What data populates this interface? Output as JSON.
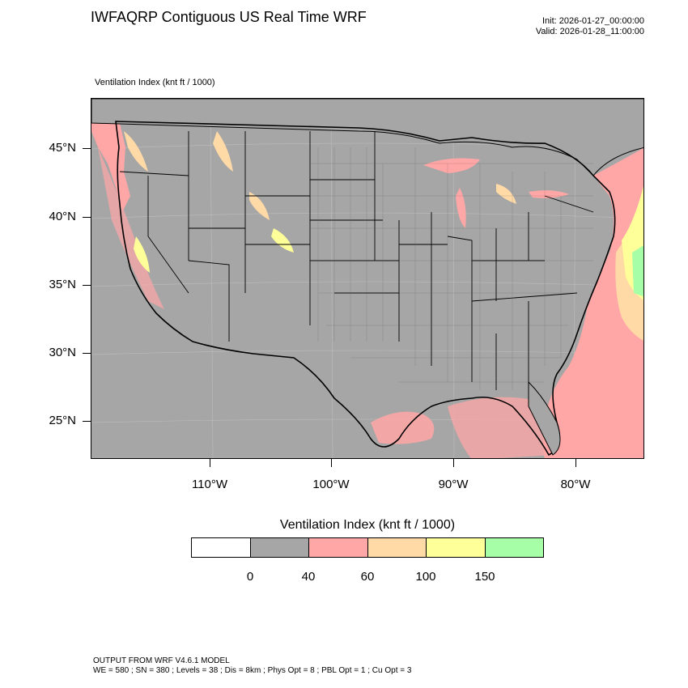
{
  "title": "IWFAQRP Contiguous US Real Time WRF",
  "run": {
    "init": "Init: 2026-01-27_00:00:00",
    "valid": "Valid: 2026-01-28_11:00:00"
  },
  "variable_label": "Ventilation Index   (knt ft / 1000)",
  "map": {
    "lat_labels": [
      "45°N",
      "40°N",
      "35°N",
      "30°N",
      "25°N"
    ],
    "lon_labels": [
      "110°W",
      "100°W",
      "90°W",
      "80°W"
    ],
    "colors": {
      "ocean_bg": "#a6a6a6",
      "vi_0_40": "#a6a6a6",
      "vi_40_60": "#ffa6a6",
      "vi_60_100": "#ffd9a6",
      "vi_100_150": "#ffff99",
      "vi_150_plus": "#a6ffa6"
    }
  },
  "colorbar": {
    "title": "Ventilation Index  (knt ft / 1000)",
    "bins": [
      {
        "color": "#ffffff"
      },
      {
        "color": "#a6a6a6"
      },
      {
        "color": "#ffa6a6"
      },
      {
        "color": "#ffd9a6"
      },
      {
        "color": "#ffff99"
      },
      {
        "color": "#a6ffa6"
      }
    ],
    "labels": [
      "0",
      "40",
      "60",
      "100",
      "150"
    ]
  },
  "footer": {
    "line1": "OUTPUT FROM WRF V4.6.1 MODEL",
    "line2": "WE = 580 ; SN = 380 ; Levels = 38 ; Dis = 8km ; Phys Opt = 8 ; PBL Opt = 1 ; Cu Opt = 3"
  }
}
